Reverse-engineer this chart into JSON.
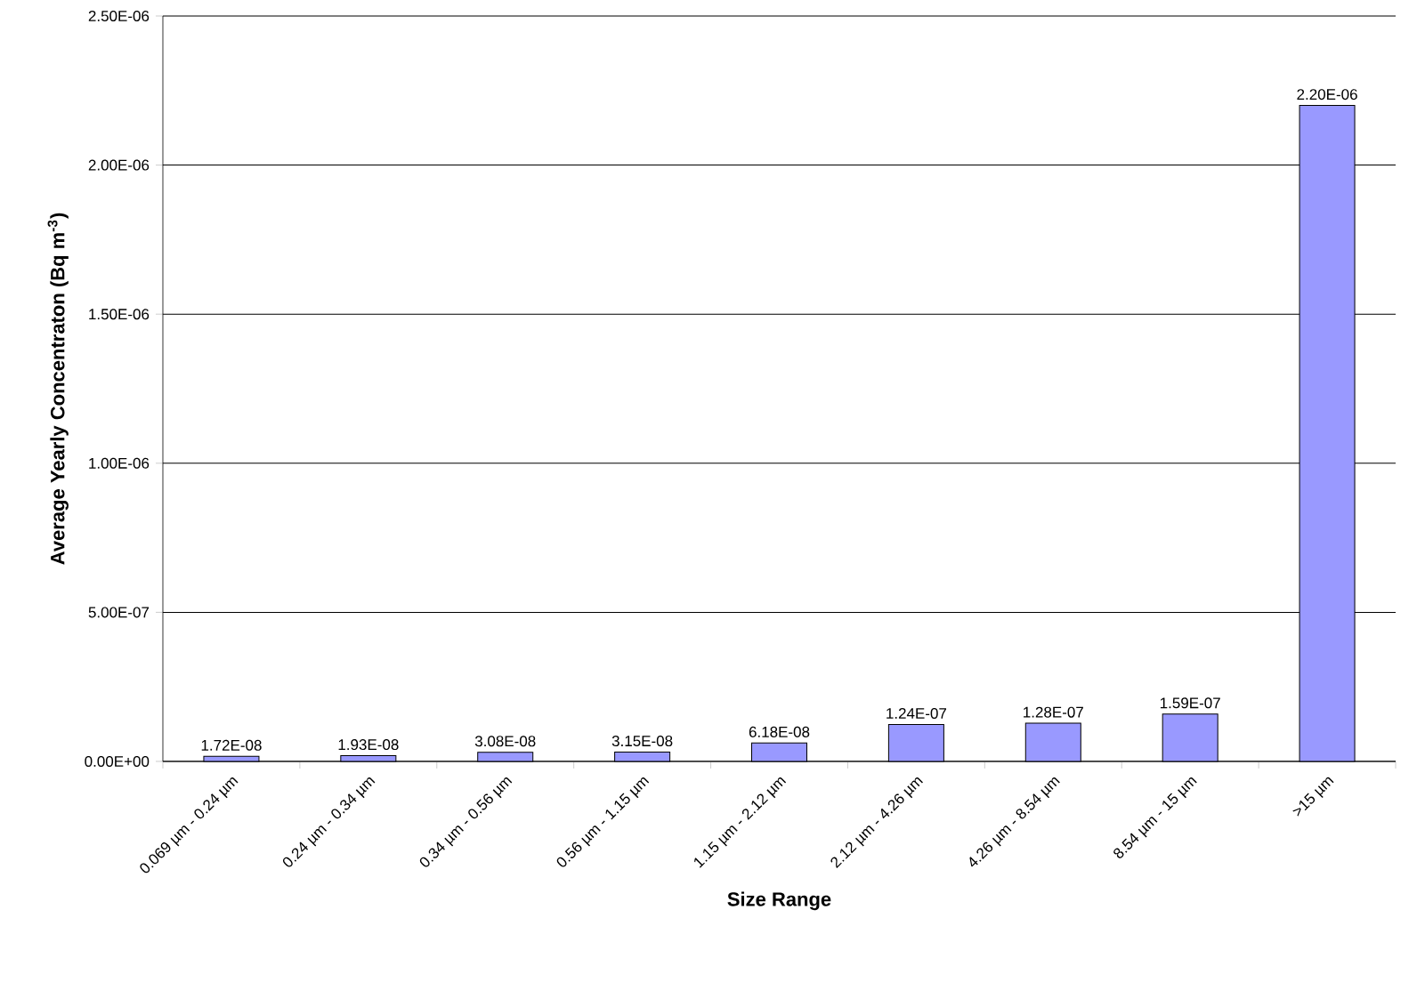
{
  "chart_data": {
    "type": "bar",
    "categories": [
      "0.069 µm - 0.24 µm",
      "0.24 µm - 0.34 µm",
      "0.34 µm - 0.56 µm",
      "0.56 µm - 1.15 µm",
      "1.15 µm - 2.12 µm",
      "2.12 µm - 4.26 µm",
      "4.26 µm - 8.54 µm",
      "8.54 µm - 15 µm",
      ">15 µm"
    ],
    "values": [
      1.72e-08,
      1.93e-08,
      3.08e-08,
      3.15e-08,
      6.18e-08,
      1.24e-07,
      1.28e-07,
      1.59e-07,
      2.2e-06
    ],
    "value_labels": [
      "1.72E-08",
      "1.93E-08",
      "3.08E-08",
      "3.15E-08",
      "6.18E-08",
      "1.24E-07",
      "1.28E-07",
      "1.59E-07",
      "2.20E-06"
    ],
    "color": "#9999ff",
    "xlabel": "Size Range",
    "ylabel": "Average Yearly Concentraton (Bq m$^{-3}$)",
    "ylim": [
      0,
      2.5e-06
    ],
    "yticks": [
      {
        "value": 0,
        "label": "0.00E+00"
      },
      {
        "value": 5e-07,
        "label": "5.00E-07"
      },
      {
        "value": 1e-06,
        "label": "1.00E-06"
      },
      {
        "value": 1.5e-06,
        "label": "1.50E-06"
      },
      {
        "value": 2e-06,
        "label": "2.00E-06"
      },
      {
        "value": 2.5e-06,
        "label": "2.50E-06"
      }
    ],
    "grid": "y"
  }
}
